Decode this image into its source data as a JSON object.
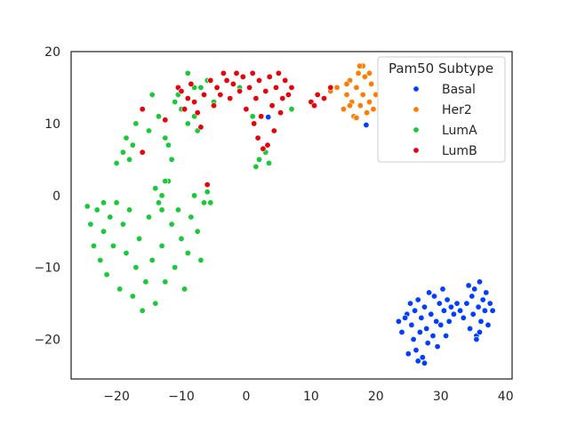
{
  "chart_data": {
    "type": "scatter",
    "title": "",
    "xlabel": "",
    "ylabel": "",
    "xlim": [
      -27,
      41
    ],
    "ylim": [
      -25.5,
      20
    ],
    "xticks": [
      -20,
      -10,
      0,
      10,
      20,
      30,
      40
    ],
    "yticks": [
      -20,
      -10,
      0,
      10,
      20
    ],
    "grid": false,
    "legend": {
      "title": "Pam50 Subtype",
      "position": "top-right"
    },
    "series": [
      {
        "name": "Basal",
        "color": "#023eff",
        "points": [
          [
            23.5,
            -17.5
          ],
          [
            24,
            -19
          ],
          [
            24.8,
            -16.5
          ],
          [
            25.3,
            -15
          ],
          [
            25.5,
            -18
          ],
          [
            25.8,
            -20
          ],
          [
            26,
            -16
          ],
          [
            26.2,
            -21.5
          ],
          [
            26.5,
            -14.5
          ],
          [
            26.8,
            -19
          ],
          [
            27,
            -17
          ],
          [
            27.2,
            -22.5
          ],
          [
            27.5,
            -15.5
          ],
          [
            27.8,
            -18.5
          ],
          [
            28,
            -20.5
          ],
          [
            28.2,
            -13.5
          ],
          [
            28.5,
            -16.5
          ],
          [
            28.8,
            -19.5
          ],
          [
            29,
            -14
          ],
          [
            29.3,
            -17.5
          ],
          [
            29.5,
            -21
          ],
          [
            29.8,
            -15
          ],
          [
            30,
            -18
          ],
          [
            30.3,
            -13
          ],
          [
            30.5,
            -16
          ],
          [
            30.8,
            -19.5
          ],
          [
            31,
            -14.5
          ],
          [
            31.3,
            -17.5
          ],
          [
            31.6,
            -15.5
          ],
          [
            32,
            -16.5
          ],
          [
            32.5,
            -15
          ],
          [
            33,
            -16
          ],
          [
            33.5,
            -17
          ],
          [
            34,
            -15
          ],
          [
            34.3,
            -12.5
          ],
          [
            34.5,
            -18.5
          ],
          [
            34.8,
            -14
          ],
          [
            35,
            -16.5
          ],
          [
            35.2,
            -13
          ],
          [
            35.5,
            -19.5
          ],
          [
            35.8,
            -15.5
          ],
          [
            36,
            -12
          ],
          [
            36.2,
            -17.5
          ],
          [
            36.5,
            -14.5
          ],
          [
            36.8,
            -16
          ],
          [
            37,
            -13.5
          ],
          [
            37.3,
            -18
          ],
          [
            37.6,
            -15
          ],
          [
            38,
            -16
          ],
          [
            35.5,
            -20
          ],
          [
            26.5,
            -23
          ],
          [
            27.5,
            -23.3
          ],
          [
            25,
            -22
          ],
          [
            24.5,
            -17
          ],
          [
            36,
            -19
          ],
          [
            3.4,
            10.9
          ],
          [
            18.5,
            9.8
          ]
        ]
      },
      {
        "name": "Her2",
        "color": "#ff7c00",
        "points": [
          [
            12,
            13.5
          ],
          [
            13,
            14.5
          ],
          [
            14,
            15
          ],
          [
            15,
            12
          ],
          [
            15.5,
            14
          ],
          [
            16,
            16
          ],
          [
            16.3,
            13
          ],
          [
            16.6,
            11
          ],
          [
            17,
            15
          ],
          [
            17.3,
            17
          ],
          [
            17.6,
            12.5
          ],
          [
            18,
            14
          ],
          [
            18.3,
            16.5
          ],
          [
            18.6,
            11.5
          ],
          [
            19,
            13
          ],
          [
            19.3,
            15.5
          ],
          [
            19.6,
            12
          ],
          [
            20,
            14
          ],
          [
            18,
            18
          ],
          [
            17,
            10.8
          ],
          [
            16,
            12.5
          ],
          [
            15.5,
            15.5
          ],
          [
            19,
            17
          ],
          [
            17.5,
            18
          ]
        ]
      },
      {
        "name": "LumA",
        "color": "#1ac938",
        "points": [
          [
            -24.5,
            -1.5
          ],
          [
            -24,
            -4
          ],
          [
            -23.5,
            -7
          ],
          [
            -23,
            -2
          ],
          [
            -22.5,
            -9
          ],
          [
            -22,
            -5
          ],
          [
            -21.5,
            -11
          ],
          [
            -21,
            -3
          ],
          [
            -20.5,
            -7
          ],
          [
            -20,
            -1
          ],
          [
            -19.5,
            -13
          ],
          [
            -19,
            -4
          ],
          [
            -18.5,
            -8
          ],
          [
            -18,
            -2
          ],
          [
            -17.5,
            -14
          ],
          [
            -17,
            -10
          ],
          [
            -16.5,
            -6
          ],
          [
            -16,
            -16
          ],
          [
            -15.5,
            -12
          ],
          [
            -15,
            -3
          ],
          [
            -14.5,
            -9
          ],
          [
            -14,
            -15
          ],
          [
            -13.5,
            -1
          ],
          [
            -13,
            -7
          ],
          [
            -12.5,
            -12
          ],
          [
            -12,
            2
          ],
          [
            -11.5,
            -4
          ],
          [
            -11,
            -10
          ],
          [
            -10.5,
            -2
          ],
          [
            -10,
            -6
          ],
          [
            -9.5,
            -13
          ],
          [
            -9,
            -8
          ],
          [
            -8.5,
            -3
          ],
          [
            -8,
            0
          ],
          [
            -7.5,
            -5
          ],
          [
            -7,
            -9
          ],
          [
            -6.5,
            -1
          ],
          [
            -6,
            0.5
          ],
          [
            -5.5,
            -1
          ],
          [
            -14,
            1
          ],
          [
            -13,
            0
          ],
          [
            -12.5,
            2
          ],
          [
            -13,
            -2
          ],
          [
            -20,
            4.5
          ],
          [
            -19,
            6
          ],
          [
            -18,
            5
          ],
          [
            -17.5,
            7
          ],
          [
            -18.5,
            8
          ],
          [
            -17,
            10
          ],
          [
            -16,
            12
          ],
          [
            -15,
            9
          ],
          [
            -14.5,
            14
          ],
          [
            -13.5,
            11
          ],
          [
            -12.5,
            8
          ],
          [
            -12,
            7
          ],
          [
            -11.5,
            5
          ],
          [
            -11,
            13
          ],
          [
            -10,
            12
          ],
          [
            -9,
            10
          ],
          [
            -8,
            11
          ],
          [
            -7.5,
            9
          ],
          [
            -7,
            15
          ],
          [
            -6,
            16
          ],
          [
            -9,
            17
          ],
          [
            -8,
            15
          ],
          [
            -5,
            13
          ],
          [
            1,
            11
          ],
          [
            2,
            5
          ],
          [
            3,
            6
          ],
          [
            3.5,
            4.5
          ],
          [
            1.5,
            4
          ],
          [
            -1,
            15
          ],
          [
            7,
            12
          ],
          [
            -10.5,
            14
          ],
          [
            -22,
            -1
          ]
        ]
      },
      {
        "name": "LumB",
        "color": "#e8000b",
        "points": [
          [
            -16,
            6
          ],
          [
            -16,
            12
          ],
          [
            -12.5,
            10.5
          ],
          [
            -10.5,
            15
          ],
          [
            -10,
            14.5
          ],
          [
            -9.5,
            12
          ],
          [
            -9,
            13.5
          ],
          [
            -8.5,
            15.5
          ],
          [
            -8,
            13
          ],
          [
            -7.5,
            11.5
          ],
          [
            -7,
            9.5
          ],
          [
            -6.5,
            14
          ],
          [
            -6,
            1.5
          ],
          [
            -5.5,
            16
          ],
          [
            -5,
            12.5
          ],
          [
            -4.5,
            15
          ],
          [
            -4,
            14
          ],
          [
            -3.5,
            17
          ],
          [
            -3,
            16
          ],
          [
            -2.5,
            13.5
          ],
          [
            -2,
            15.5
          ],
          [
            -1.5,
            17
          ],
          [
            -1,
            14.5
          ],
          [
            -0.5,
            16.5
          ],
          [
            0,
            12
          ],
          [
            0.5,
            15
          ],
          [
            1,
            17
          ],
          [
            1.2,
            10
          ],
          [
            1.5,
            13.5
          ],
          [
            1.8,
            8
          ],
          [
            2,
            16
          ],
          [
            2.3,
            11
          ],
          [
            2.6,
            6.5
          ],
          [
            3,
            14.5
          ],
          [
            3.3,
            7
          ],
          [
            3.6,
            16.5
          ],
          [
            4,
            12.5
          ],
          [
            4.3,
            9
          ],
          [
            4.6,
            15
          ],
          [
            5,
            17
          ],
          [
            5.3,
            11.5
          ],
          [
            5.6,
            13.5
          ],
          [
            6,
            16
          ],
          [
            6.5,
            14
          ],
          [
            7,
            15
          ],
          [
            10,
            13
          ],
          [
            10.5,
            12.5
          ],
          [
            11,
            14
          ],
          [
            12,
            13.5
          ],
          [
            13,
            15
          ]
        ]
      }
    ]
  }
}
